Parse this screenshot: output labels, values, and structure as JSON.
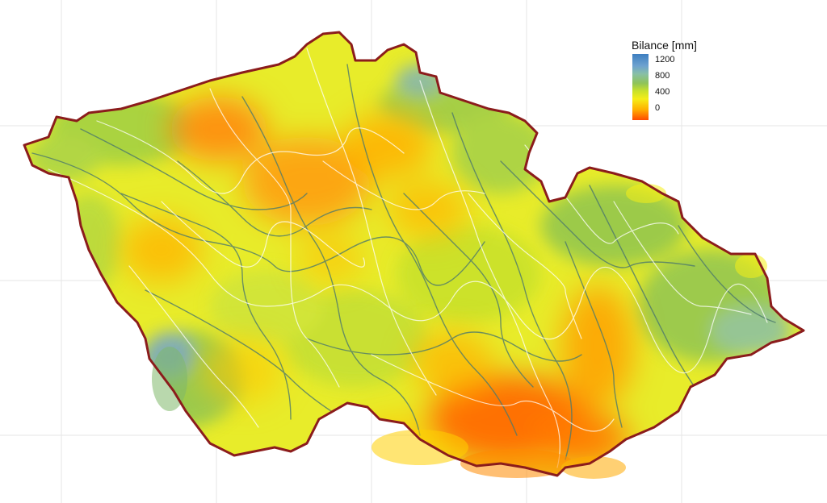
{
  "legend": {
    "title": "Bilance [mm]",
    "ticks": [
      "1200",
      "800",
      "400",
      "0"
    ],
    "colors": {
      "high": "#3e7fc0",
      "mid_high": "#88bfa7",
      "mid": "#8ec35a",
      "mid_low": "#f5ee18",
      "low": "#ff4a00"
    }
  },
  "map": {
    "border_color": "#8b1c1c",
    "river_colors": [
      "#ffffff",
      "#4e7a6c"
    ]
  }
}
